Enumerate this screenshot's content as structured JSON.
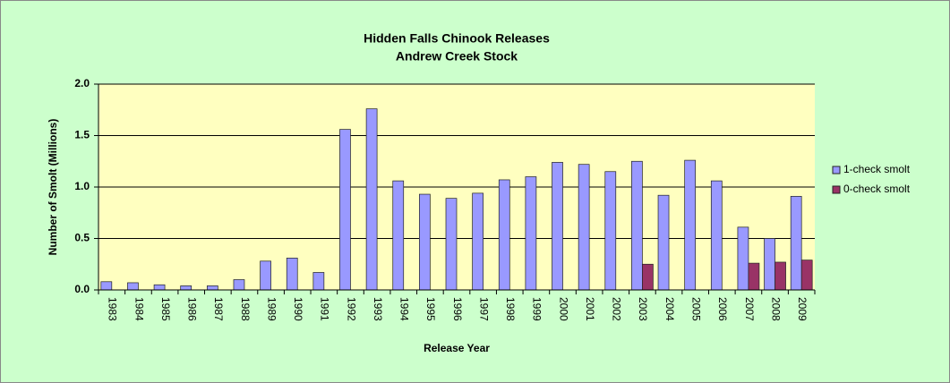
{
  "chart_data": {
    "type": "bar",
    "title": "Hidden Falls Chinook Releases",
    "subtitle": "Andrew Creek Stock",
    "x_label": "Release Year",
    "y_label": "Number of Smolt (Millions)",
    "categories": [
      "1983",
      "1984",
      "1985",
      "1986",
      "1987",
      "1988",
      "1989",
      "1990",
      "1991",
      "1992",
      "1993",
      "1994",
      "1995",
      "1996",
      "1997",
      "1998",
      "1999",
      "2000",
      "2001",
      "2002",
      "2003",
      "2004",
      "2005",
      "2006",
      "2007",
      "2008",
      "2009"
    ],
    "series": [
      {
        "name": "1-check smolt",
        "color": "#9999ff",
        "values": [
          0.08,
          0.07,
          0.05,
          0.04,
          0.04,
          0.1,
          0.28,
          0.31,
          0.17,
          1.56,
          1.76,
          1.06,
          0.93,
          0.89,
          0.94,
          1.07,
          1.1,
          1.24,
          1.22,
          1.15,
          1.25,
          0.92,
          1.26,
          1.06,
          0.61,
          0.5,
          0.91
        ]
      },
      {
        "name": "0-check smolt",
        "color": "#993366",
        "values": [
          null,
          null,
          null,
          null,
          null,
          null,
          null,
          null,
          null,
          null,
          null,
          null,
          null,
          null,
          null,
          null,
          null,
          null,
          null,
          null,
          0.25,
          null,
          null,
          null,
          0.26,
          0.27,
          0.29
        ]
      }
    ],
    "ylim": [
      0,
      2
    ],
    "yticks": [
      {
        "value": 0,
        "label": "0.0"
      },
      0.5,
      {
        "value": 1,
        "label": "1.0"
      },
      1.5,
      {
        "value": 2,
        "label": "2.0"
      }
    ],
    "grid": true,
    "legend": "right"
  }
}
